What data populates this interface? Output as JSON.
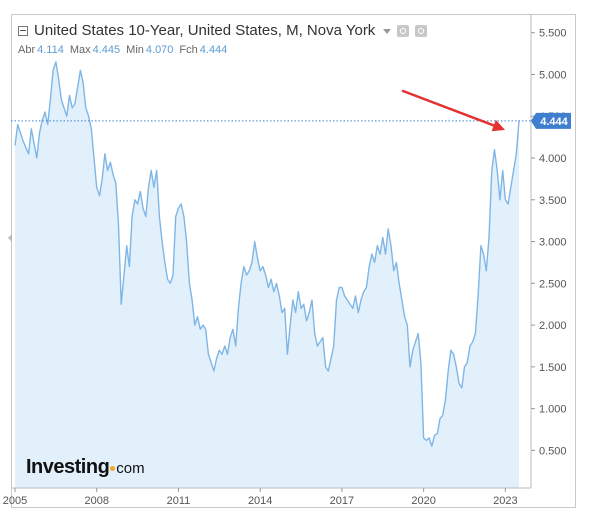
{
  "header": {
    "title": "United States 10-Year, United States, M, Nova York",
    "ohlc": [
      {
        "label": "Abr",
        "value": "4.114"
      },
      {
        "label": "Max",
        "value": "4.445"
      },
      {
        "label": "Min",
        "value": "4.070"
      },
      {
        "label": "Fch",
        "value": "4.444"
      }
    ]
  },
  "brand": {
    "main": "Investing",
    "sub": "com"
  },
  "colors": {
    "line": "#7fb6e6",
    "fill": "#e2f0fb",
    "arrow": "#e53030",
    "badge": "#3f7fd0",
    "grid": "#d9d9d9",
    "axis_text": "#555555"
  },
  "chart_data": {
    "type": "area",
    "title": "United States 10-Year, United States, M, Nova York",
    "xlabel": "",
    "ylabel": "",
    "x_ticks": [
      "2005",
      "2008",
      "2011",
      "2014",
      "2017",
      "2020",
      "2023"
    ],
    "y_ticks": [
      "5.500",
      "5.000",
      "4.500",
      "4.000",
      "3.500",
      "3.000",
      "2.500",
      "2.000",
      "1.500",
      "1.000",
      "0.500"
    ],
    "xlim": [
      2005.0,
      2023.5
    ],
    "ylim": [
      0.05,
      5.7
    ],
    "last_value": 4.444,
    "last_value_label": "4.444",
    "grid": false,
    "annotations": [
      {
        "type": "arrow",
        "target": "last-value"
      }
    ],
    "series": [
      {
        "values": [
          [
            2005.0,
            4.15
          ],
          [
            2005.1,
            4.4
          ],
          [
            2005.3,
            4.2
          ],
          [
            2005.5,
            4.05
          ],
          [
            2005.6,
            4.35
          ],
          [
            2005.8,
            4.0
          ],
          [
            2005.9,
            4.3
          ],
          [
            2006.0,
            4.45
          ],
          [
            2006.1,
            4.55
          ],
          [
            2006.2,
            4.4
          ],
          [
            2006.3,
            4.7
          ],
          [
            2006.4,
            5.05
          ],
          [
            2006.5,
            5.15
          ],
          [
            2006.6,
            4.95
          ],
          [
            2006.7,
            4.7
          ],
          [
            2006.8,
            4.6
          ],
          [
            2006.9,
            4.5
          ],
          [
            2007.0,
            4.75
          ],
          [
            2007.1,
            4.6
          ],
          [
            2007.2,
            4.65
          ],
          [
            2007.3,
            4.85
          ],
          [
            2007.4,
            5.05
          ],
          [
            2007.5,
            4.9
          ],
          [
            2007.6,
            4.6
          ],
          [
            2007.7,
            4.5
          ],
          [
            2007.8,
            4.35
          ],
          [
            2007.9,
            4.0
          ],
          [
            2008.0,
            3.65
          ],
          [
            2008.1,
            3.55
          ],
          [
            2008.2,
            3.75
          ],
          [
            2008.3,
            4.05
          ],
          [
            2008.4,
            3.85
          ],
          [
            2008.5,
            3.95
          ],
          [
            2008.6,
            3.8
          ],
          [
            2008.7,
            3.7
          ],
          [
            2008.8,
            3.2
          ],
          [
            2008.9,
            2.25
          ],
          [
            2009.0,
            2.6
          ],
          [
            2009.1,
            2.95
          ],
          [
            2009.2,
            2.7
          ],
          [
            2009.3,
            3.3
          ],
          [
            2009.4,
            3.5
          ],
          [
            2009.5,
            3.45
          ],
          [
            2009.6,
            3.6
          ],
          [
            2009.7,
            3.4
          ],
          [
            2009.8,
            3.3
          ],
          [
            2009.9,
            3.65
          ],
          [
            2010.0,
            3.85
          ],
          [
            2010.1,
            3.65
          ],
          [
            2010.2,
            3.85
          ],
          [
            2010.3,
            3.3
          ],
          [
            2010.4,
            3.0
          ],
          [
            2010.5,
            2.75
          ],
          [
            2010.6,
            2.55
          ],
          [
            2010.7,
            2.5
          ],
          [
            2010.8,
            2.6
          ],
          [
            2010.9,
            3.3
          ],
          [
            2011.0,
            3.4
          ],
          [
            2011.1,
            3.45
          ],
          [
            2011.2,
            3.3
          ],
          [
            2011.3,
            3.0
          ],
          [
            2011.4,
            2.5
          ],
          [
            2011.5,
            2.3
          ],
          [
            2011.6,
            2.0
          ],
          [
            2011.7,
            2.1
          ],
          [
            2011.8,
            1.95
          ],
          [
            2011.9,
            2.0
          ],
          [
            2012.0,
            1.95
          ],
          [
            2012.1,
            1.65
          ],
          [
            2012.2,
            1.55
          ],
          [
            2012.3,
            1.45
          ],
          [
            2012.4,
            1.6
          ],
          [
            2012.5,
            1.7
          ],
          [
            2012.6,
            1.65
          ],
          [
            2012.7,
            1.75
          ],
          [
            2012.8,
            1.65
          ],
          [
            2012.9,
            1.85
          ],
          [
            2013.0,
            1.95
          ],
          [
            2013.1,
            1.75
          ],
          [
            2013.2,
            2.2
          ],
          [
            2013.3,
            2.5
          ],
          [
            2013.4,
            2.7
          ],
          [
            2013.5,
            2.6
          ],
          [
            2013.6,
            2.65
          ],
          [
            2013.7,
            2.75
          ],
          [
            2013.8,
            3.0
          ],
          [
            2013.9,
            2.8
          ],
          [
            2014.0,
            2.65
          ],
          [
            2014.1,
            2.7
          ],
          [
            2014.2,
            2.6
          ],
          [
            2014.3,
            2.45
          ],
          [
            2014.4,
            2.55
          ],
          [
            2014.5,
            2.4
          ],
          [
            2014.6,
            2.5
          ],
          [
            2014.7,
            2.35
          ],
          [
            2014.8,
            2.15
          ],
          [
            2014.9,
            2.2
          ],
          [
            2015.0,
            1.65
          ],
          [
            2015.1,
            2.0
          ],
          [
            2015.2,
            2.3
          ],
          [
            2015.3,
            2.15
          ],
          [
            2015.4,
            2.4
          ],
          [
            2015.5,
            2.2
          ],
          [
            2015.6,
            2.25
          ],
          [
            2015.7,
            2.05
          ],
          [
            2015.8,
            2.15
          ],
          [
            2015.9,
            2.3
          ],
          [
            2016.0,
            1.9
          ],
          [
            2016.1,
            1.75
          ],
          [
            2016.2,
            1.8
          ],
          [
            2016.3,
            1.85
          ],
          [
            2016.4,
            1.5
          ],
          [
            2016.5,
            1.45
          ],
          [
            2016.6,
            1.6
          ],
          [
            2016.7,
            1.75
          ],
          [
            2016.8,
            2.3
          ],
          [
            2016.9,
            2.45
          ],
          [
            2017.0,
            2.45
          ],
          [
            2017.1,
            2.35
          ],
          [
            2017.2,
            2.3
          ],
          [
            2017.3,
            2.25
          ],
          [
            2017.4,
            2.2
          ],
          [
            2017.5,
            2.35
          ],
          [
            2017.6,
            2.15
          ],
          [
            2017.7,
            2.3
          ],
          [
            2017.8,
            2.4
          ],
          [
            2017.9,
            2.45
          ],
          [
            2018.0,
            2.7
          ],
          [
            2018.1,
            2.85
          ],
          [
            2018.2,
            2.75
          ],
          [
            2018.3,
            2.95
          ],
          [
            2018.4,
            2.85
          ],
          [
            2018.5,
            3.05
          ],
          [
            2018.6,
            2.85
          ],
          [
            2018.7,
            3.15
          ],
          [
            2018.8,
            2.95
          ],
          [
            2018.9,
            2.65
          ],
          [
            2019.0,
            2.75
          ],
          [
            2019.1,
            2.5
          ],
          [
            2019.2,
            2.3
          ],
          [
            2019.3,
            2.1
          ],
          [
            2019.4,
            2.0
          ],
          [
            2019.5,
            1.5
          ],
          [
            2019.6,
            1.7
          ],
          [
            2019.7,
            1.8
          ],
          [
            2019.8,
            1.9
          ],
          [
            2019.9,
            1.55
          ],
          [
            2020.0,
            0.65
          ],
          [
            2020.1,
            0.62
          ],
          [
            2020.2,
            0.65
          ],
          [
            2020.3,
            0.55
          ],
          [
            2020.4,
            0.68
          ],
          [
            2020.5,
            0.7
          ],
          [
            2020.6,
            0.88
          ],
          [
            2020.7,
            0.92
          ],
          [
            2020.8,
            1.1
          ],
          [
            2020.9,
            1.45
          ],
          [
            2021.0,
            1.7
          ],
          [
            2021.1,
            1.65
          ],
          [
            2021.2,
            1.5
          ],
          [
            2021.3,
            1.3
          ],
          [
            2021.4,
            1.25
          ],
          [
            2021.5,
            1.5
          ],
          [
            2021.6,
            1.55
          ],
          [
            2021.7,
            1.75
          ],
          [
            2021.8,
            1.8
          ],
          [
            2021.9,
            1.9
          ],
          [
            2022.0,
            2.35
          ],
          [
            2022.1,
            2.95
          ],
          [
            2022.2,
            2.85
          ],
          [
            2022.3,
            2.65
          ],
          [
            2022.4,
            3.05
          ],
          [
            2022.5,
            3.85
          ],
          [
            2022.6,
            4.1
          ],
          [
            2022.7,
            3.85
          ],
          [
            2022.8,
            3.5
          ],
          [
            2022.9,
            3.85
          ],
          [
            2023.0,
            3.5
          ],
          [
            2023.1,
            3.45
          ],
          [
            2023.2,
            3.65
          ],
          [
            2023.3,
            3.85
          ],
          [
            2023.4,
            4.05
          ],
          [
            2023.5,
            4.444
          ]
        ]
      }
    ]
  }
}
